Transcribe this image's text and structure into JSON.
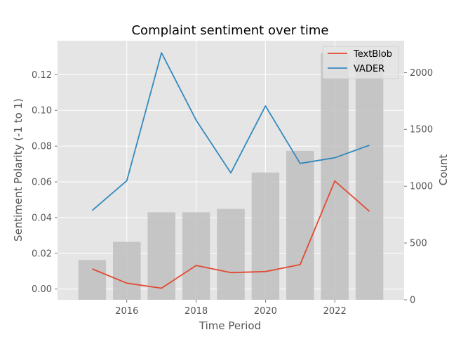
{
  "chart_data": {
    "type": "bar+line",
    "title": "Complaint sentiment over time",
    "xlabel": "Time Period",
    "ylabel": "Sentiment Polarity (-1 to 1)",
    "y2label": "Count",
    "x": [
      2015,
      2016,
      2017,
      2018,
      2019,
      2020,
      2021,
      2022,
      2023
    ],
    "xticks": [
      "2016",
      "2018",
      "2020",
      "2022"
    ],
    "yticks": [
      "0.00",
      "0.02",
      "0.04",
      "0.06",
      "0.08",
      "0.10",
      "0.12"
    ],
    "y2ticks": [
      "0",
      "500",
      "1000",
      "1500",
      "2000"
    ],
    "xlim": [
      2014.0,
      2024.0
    ],
    "ylim": [
      -0.006,
      0.139
    ],
    "y2lim": [
      0,
      2280
    ],
    "grid": true,
    "legend_position": "top-right",
    "bars": {
      "values": [
        350,
        510,
        770,
        770,
        800,
        1120,
        1310,
        2170,
        2170
      ],
      "color": "#bfbfbf"
    },
    "series": [
      {
        "name": "TextBlob",
        "color": "#E24A33",
        "values": [
          0.0113,
          0.0033,
          0.0005,
          0.0132,
          0.0092,
          0.0098,
          0.0137,
          0.0605,
          0.0435
        ]
      },
      {
        "name": "VADER",
        "color": "#348ABD",
        "values": [
          0.044,
          0.0607,
          0.1323,
          0.0945,
          0.065,
          0.1025,
          0.0703,
          0.0735,
          0.0805
        ]
      }
    ]
  }
}
